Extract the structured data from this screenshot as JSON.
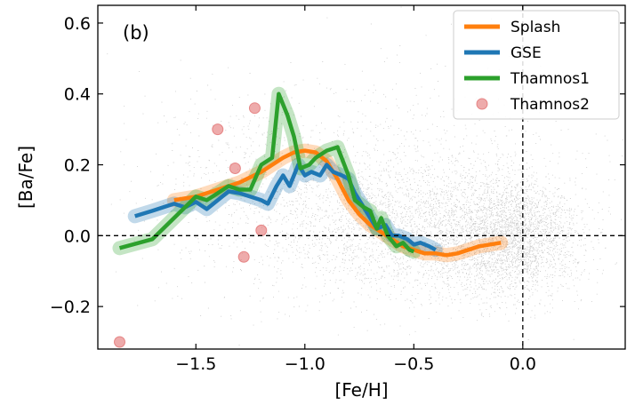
{
  "chart_data": {
    "type": "line",
    "panel_label": "(b)",
    "xlabel": "[Fe/H]",
    "ylabel": "[Ba/Fe]",
    "xlim": [
      -1.95,
      0.47
    ],
    "ylim": [
      -0.32,
      0.65
    ],
    "xticks": [
      -1.5,
      -1.0,
      -0.5,
      0.0
    ],
    "xtick_labels": [
      "−1.5",
      "−1.0",
      "−0.5",
      "0.0"
    ],
    "yticks": [
      -0.2,
      0.0,
      0.2,
      0.4,
      0.6
    ],
    "ytick_labels": [
      "−0.2",
      "0.0",
      "0.2",
      "0.4",
      "0.6"
    ],
    "reference_lines": {
      "x": 0.0,
      "y": 0.0
    },
    "background_scatter": {
      "name": "field stars",
      "color": "#8c8c8c"
    },
    "legend_position": "top-right",
    "series": [
      {
        "name": "Splash",
        "color": "#ff7f0e",
        "x": [
          -1.6,
          -1.5,
          -1.4,
          -1.3,
          -1.2,
          -1.1,
          -1.05,
          -1.0,
          -0.95,
          -0.9,
          -0.85,
          -0.8,
          -0.75,
          -0.7,
          -0.65,
          -0.6,
          -0.55,
          -0.5,
          -0.45,
          -0.4,
          -0.35,
          -0.3,
          -0.25,
          -0.2,
          -0.15,
          -0.1
        ],
        "y": [
          0.1,
          0.11,
          0.13,
          0.15,
          0.18,
          0.22,
          0.235,
          0.24,
          0.235,
          0.21,
          0.16,
          0.1,
          0.06,
          0.03,
          0.01,
          -0.01,
          -0.03,
          -0.04,
          -0.05,
          -0.05,
          -0.055,
          -0.05,
          -0.04,
          -0.03,
          -0.025,
          -0.02
        ]
      },
      {
        "name": "GSE",
        "color": "#1f77b4",
        "x": [
          -1.78,
          -1.7,
          -1.65,
          -1.6,
          -1.55,
          -1.5,
          -1.45,
          -1.4,
          -1.35,
          -1.3,
          -1.25,
          -1.2,
          -1.17,
          -1.13,
          -1.1,
          -1.07,
          -1.03,
          -1.0,
          -0.97,
          -0.93,
          -0.9,
          -0.87,
          -0.83,
          -0.8,
          -0.77,
          -0.73,
          -0.7,
          -0.67,
          -0.63,
          -0.6,
          -0.57,
          -0.53,
          -0.5,
          -0.47,
          -0.43,
          -0.4
        ],
        "y": [
          0.055,
          0.07,
          0.08,
          0.09,
          0.08,
          0.095,
          0.075,
          0.1,
          0.125,
          0.12,
          0.11,
          0.1,
          0.09,
          0.14,
          0.17,
          0.14,
          0.2,
          0.17,
          0.18,
          0.17,
          0.2,
          0.18,
          0.17,
          0.16,
          0.12,
          0.08,
          0.05,
          0.02,
          0.03,
          0.0,
          0.0,
          -0.01,
          -0.025,
          -0.02,
          -0.03,
          -0.04
        ]
      },
      {
        "name": "Thamnos1",
        "color": "#2ca02c",
        "x": [
          -1.85,
          -1.7,
          -1.6,
          -1.55,
          -1.5,
          -1.45,
          -1.4,
          -1.35,
          -1.3,
          -1.25,
          -1.2,
          -1.15,
          -1.12,
          -1.08,
          -1.05,
          -1.02,
          -0.98,
          -0.95,
          -0.9,
          -0.85,
          -0.8,
          -0.77,
          -0.73,
          -0.7,
          -0.67,
          -0.65,
          -0.62,
          -0.58,
          -0.55,
          -0.52,
          -0.5
        ],
        "y": [
          -0.035,
          -0.01,
          0.05,
          0.08,
          0.11,
          0.1,
          0.12,
          0.14,
          0.13,
          0.13,
          0.2,
          0.22,
          0.4,
          0.34,
          0.28,
          0.19,
          0.2,
          0.22,
          0.24,
          0.25,
          0.17,
          0.1,
          0.08,
          0.07,
          0.02,
          0.05,
          0.0,
          -0.03,
          -0.02,
          -0.04,
          -0.045
        ]
      },
      {
        "name": "Thamnos2",
        "color": "#e06666",
        "type": "scatter",
        "x": [
          -1.85,
          -1.4,
          -1.32,
          -1.28,
          -1.23,
          -1.2
        ],
        "y": [
          -0.3,
          0.3,
          0.19,
          -0.06,
          0.36,
          0.015
        ]
      }
    ]
  }
}
